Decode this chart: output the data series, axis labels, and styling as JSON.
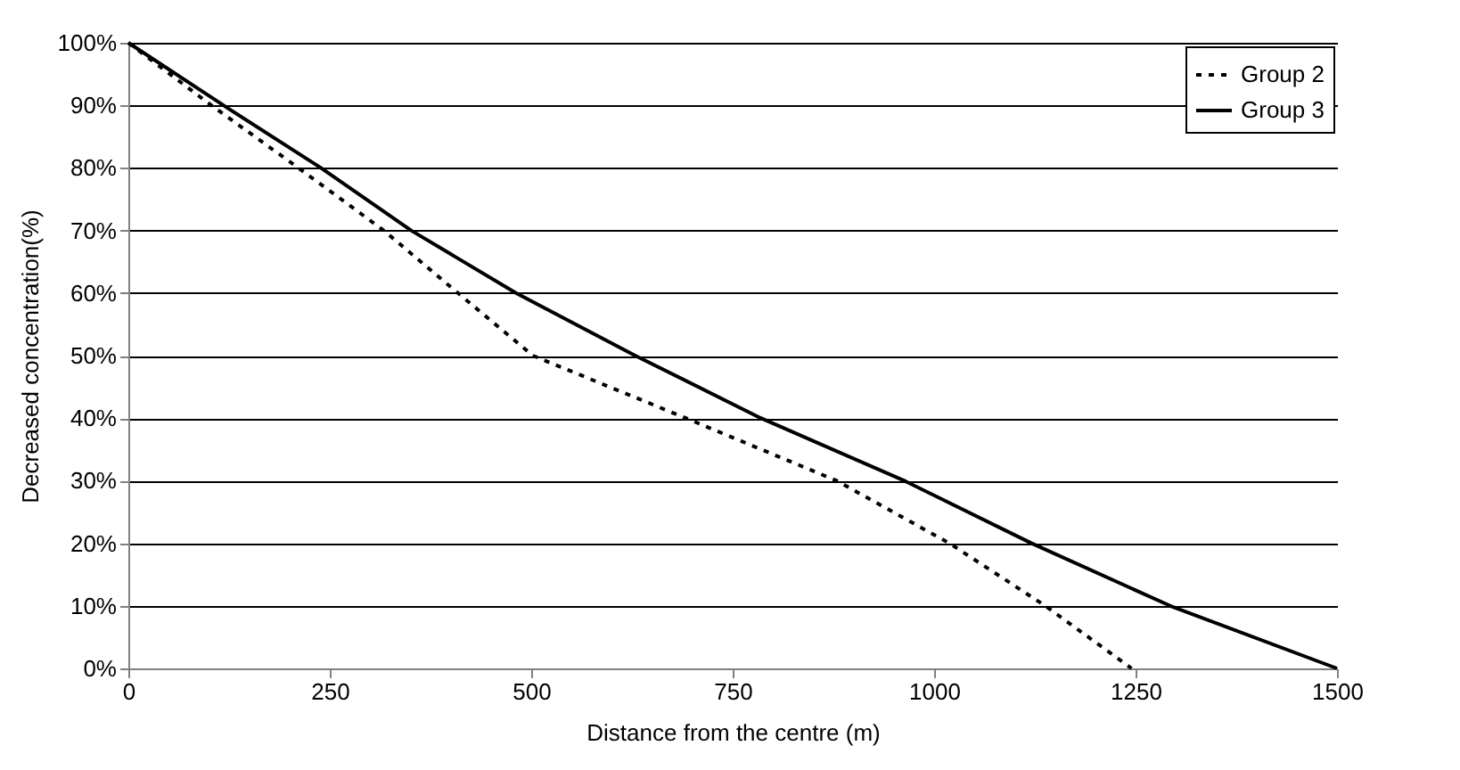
{
  "chart_data": {
    "type": "line",
    "xlabel": "Distance from the centre (m)",
    "ylabel": "Decreased concentration(%)",
    "xlim": [
      0,
      1500
    ],
    "xticks": [
      0,
      250,
      500,
      750,
      1000,
      1250,
      1500
    ],
    "ylim": [
      0,
      100
    ],
    "yticks": [
      {
        "value": 0,
        "label": "0%"
      },
      {
        "value": 10,
        "label": "10%"
      },
      {
        "value": 20,
        "label": "20%"
      },
      {
        "value": 30,
        "label": "30%"
      },
      {
        "value": 40,
        "label": "40%"
      },
      {
        "value": 50,
        "label": "50%"
      },
      {
        "value": 60,
        "label": "60%"
      },
      {
        "value": 70,
        "label": "70%"
      },
      {
        "value": 80,
        "label": "80%"
      },
      {
        "value": 90,
        "label": "90%"
      },
      {
        "value": 100,
        "label": "100%"
      }
    ],
    "grid": "y",
    "legend": "top right",
    "marker": "none",
    "series": [
      {
        "name": "Group 2",
        "color": "#000000",
        "line_style": "dotted",
        "x": [
          0,
          103,
          211,
          317,
          409,
          502,
          692,
          879,
          1019,
          1138,
          1245
        ],
        "values": [
          100,
          90,
          80,
          70,
          60,
          50,
          40,
          30,
          20,
          10,
          0
        ]
      },
      {
        "name": "Group 3",
        "color": "#000000",
        "line_style": "solid",
        "x": [
          0,
          118,
          239,
          351,
          481,
          629,
          785,
          963,
          1121,
          1293,
          1500
        ],
        "values": [
          100,
          90,
          80,
          70,
          60,
          50,
          40,
          30,
          20,
          10,
          0
        ]
      }
    ]
  }
}
